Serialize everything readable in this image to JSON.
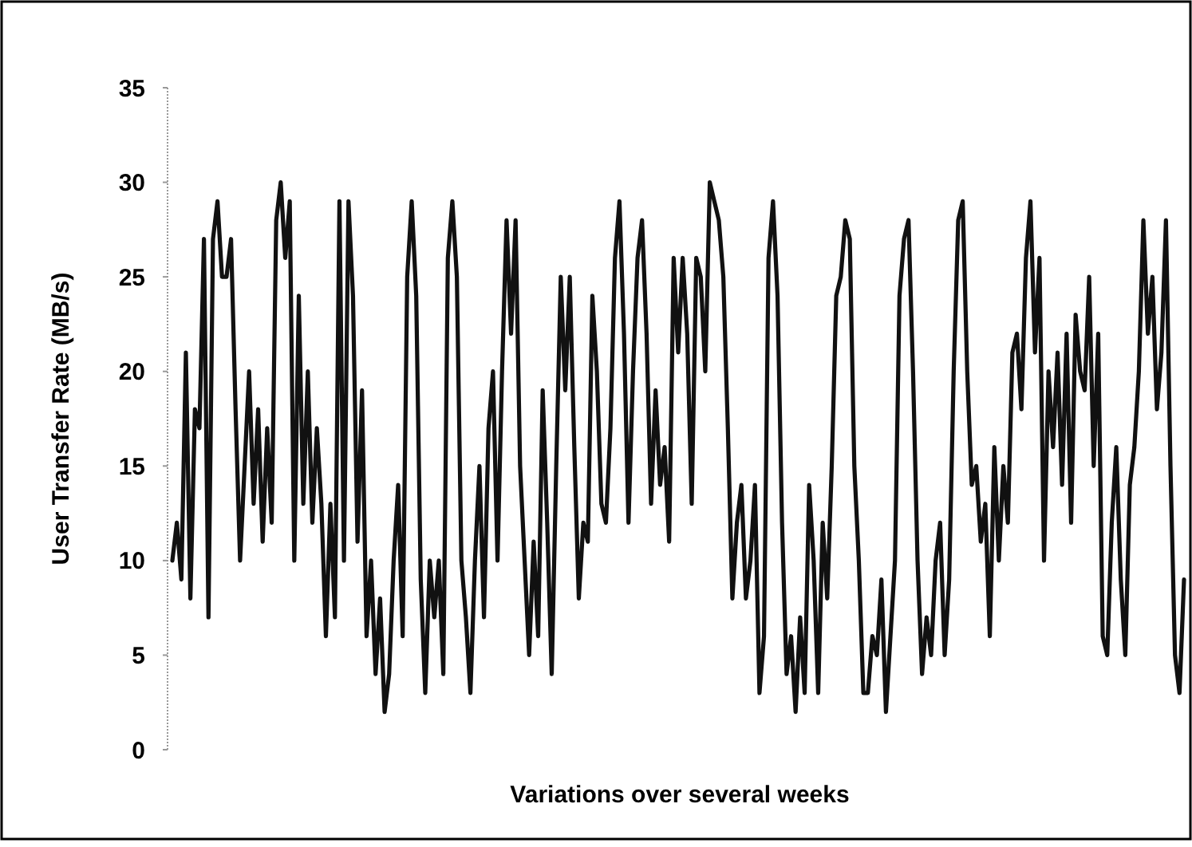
{
  "chart_data": {
    "type": "line",
    "xlabel": "Variations over several weeks",
    "ylabel": "User Transfer Rate (MB/s)",
    "ylim": [
      0,
      35
    ],
    "yticks": [
      0,
      5,
      10,
      15,
      20,
      25,
      30,
      35
    ],
    "grid": false,
    "tick_labels": "y",
    "marker": "none",
    "line_style": "solid",
    "categories": [
      null,
      null,
      null,
      null,
      null,
      null,
      null,
      null,
      null,
      null,
      null,
      null,
      null,
      null,
      null,
      null,
      null,
      null,
      null,
      null,
      null,
      null,
      null,
      null,
      null,
      null,
      null,
      null,
      null,
      null,
      null,
      null,
      null,
      null,
      null,
      null,
      null,
      null,
      null,
      null,
      null,
      null,
      null,
      null,
      null,
      null,
      null,
      null,
      null,
      null,
      null,
      null,
      null,
      null,
      null,
      null,
      null,
      null,
      null,
      null,
      null,
      null,
      null,
      null,
      null,
      null,
      null,
      null,
      null,
      null,
      null,
      null,
      null,
      null,
      null,
      null,
      null,
      null,
      null,
      null,
      null,
      null,
      null,
      null,
      null,
      null,
      null,
      null,
      null,
      null,
      null,
      null,
      null,
      null,
      null,
      null,
      null,
      null,
      null,
      null,
      null,
      null,
      null,
      null,
      null,
      null,
      null,
      null,
      null,
      null,
      null,
      null,
      null,
      null,
      null,
      null,
      null,
      null,
      null,
      null,
      null,
      null,
      null,
      null,
      null,
      null,
      null,
      null,
      null,
      null,
      null,
      null,
      null,
      null,
      null,
      null,
      null,
      null,
      null,
      null,
      null,
      null,
      null,
      null,
      null,
      null,
      null,
      null,
      null,
      null,
      null,
      null,
      null,
      null,
      null,
      null,
      null,
      null,
      null,
      null,
      null,
      null,
      null,
      null,
      null,
      null,
      null,
      null,
      null,
      null,
      null,
      null,
      null,
      null,
      null,
      null,
      null,
      null,
      null,
      null,
      null,
      null,
      null,
      null,
      null,
      null,
      null,
      null,
      null,
      null,
      null,
      null,
      null,
      null,
      null,
      null,
      null,
      null,
      null,
      null,
      null,
      null,
      null,
      null,
      null,
      null,
      null,
      null,
      null,
      null,
      null,
      null,
      null,
      null,
      null,
      null,
      null,
      null,
      null,
      null,
      null,
      null,
      null,
      null,
      null
    ],
    "series": [
      {
        "color": "#111111",
        "values": [
          10,
          12,
          9,
          21,
          8,
          18,
          17,
          27,
          7,
          27,
          29,
          25,
          25,
          27,
          18,
          10,
          15,
          20,
          13,
          18,
          11,
          17,
          12,
          28,
          30,
          26,
          29,
          10,
          24,
          13,
          20,
          12,
          17,
          13,
          6,
          13,
          7,
          29,
          10,
          29,
          24,
          11,
          19,
          6,
          10,
          4,
          8,
          2,
          4,
          10,
          14,
          6,
          25,
          29,
          24,
          9,
          3,
          10,
          7,
          10,
          4,
          26,
          29,
          25,
          10,
          7,
          3,
          10,
          15,
          7,
          17,
          20,
          10,
          20,
          28,
          22,
          28,
          15,
          10,
          5,
          11,
          6,
          19,
          12,
          4,
          15,
          25,
          19,
          25,
          16,
          8,
          12,
          11,
          24,
          20,
          13,
          12,
          17,
          26,
          29,
          22,
          12,
          20,
          26,
          28,
          22,
          13,
          19,
          14,
          16,
          11,
          26,
          21,
          26,
          22,
          13,
          26,
          25,
          20,
          30,
          29,
          28,
          25,
          17,
          8,
          12,
          14,
          8,
          10,
          14,
          3,
          6,
          26,
          29,
          24,
          12,
          4,
          6,
          2,
          7,
          3,
          14,
          10,
          3,
          12,
          8,
          15,
          24,
          25,
          28,
          27,
          15,
          10,
          3,
          3,
          6,
          5,
          9,
          2,
          6,
          10,
          24,
          27,
          28,
          20,
          10,
          4,
          7,
          5,
          10,
          12,
          5,
          9,
          20,
          28,
          29,
          20,
          14,
          15,
          11,
          13,
          6,
          16,
          10,
          15,
          12,
          21,
          22,
          18,
          26,
          29,
          21,
          26,
          10,
          20,
          16,
          21,
          14,
          22,
          12,
          23,
          20,
          19,
          25,
          15,
          22,
          6,
          5,
          12,
          16,
          9,
          5,
          14,
          16,
          20,
          28,
          22,
          25,
          18,
          21,
          28,
          15,
          5,
          3,
          9
        ]
      }
    ]
  }
}
